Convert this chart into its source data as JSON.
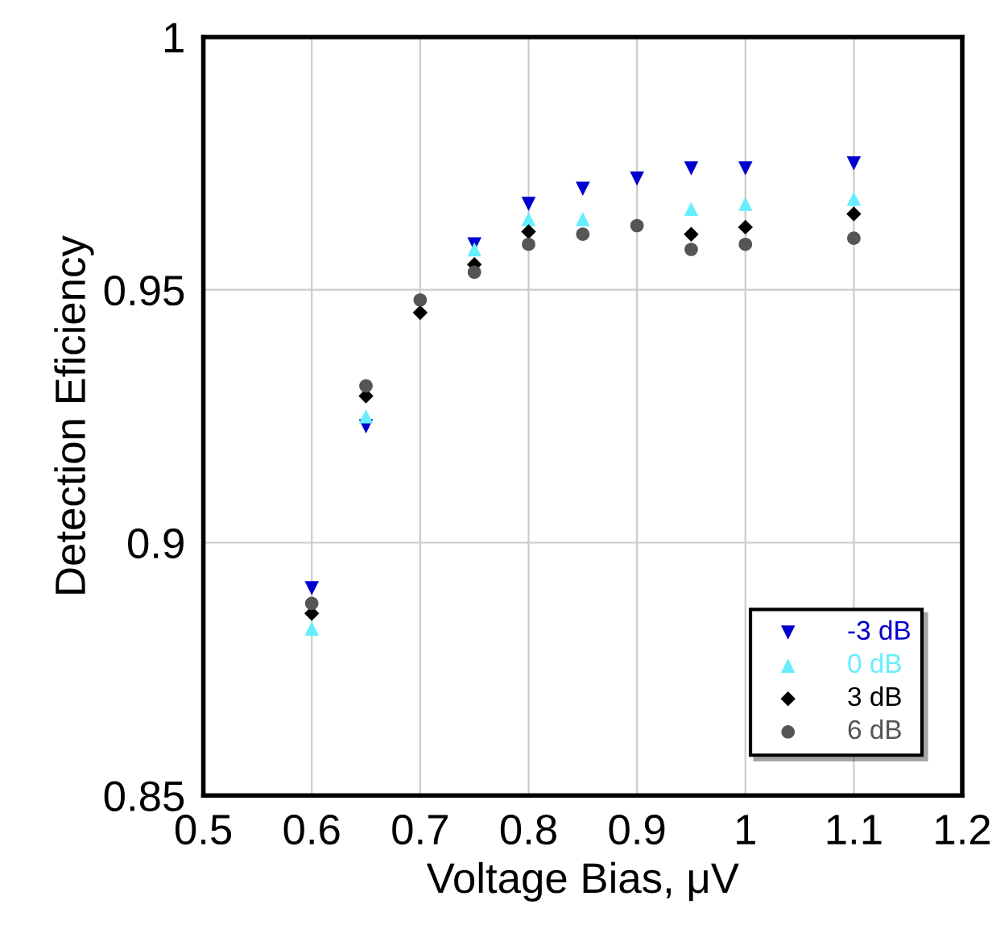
{
  "chart_data": {
    "type": "scatter",
    "xlabel": "Voltage Bias, μV",
    "ylabel": "Detection Eficiency",
    "x": [
      0.6,
      0.65,
      0.7,
      0.75,
      0.8,
      0.85,
      0.9,
      0.95,
      1.0,
      1.1
    ],
    "xlim": [
      0.5,
      1.2
    ],
    "xticks": [
      0.5,
      0.6,
      0.7,
      0.8,
      0.9,
      1,
      1.1,
      1.2
    ],
    "ylim": [
      0.85,
      1
    ],
    "yticks": [
      0.85,
      0.9,
      0.95,
      1
    ],
    "grid": true,
    "legend": "bottom right",
    "series": [
      {
        "name": "-3 dB",
        "color": "#0000cc",
        "marker": "triangle-down",
        "values": [
          0.891,
          0.923,
          null,
          0.959,
          0.967,
          0.97,
          0.972,
          0.974,
          0.974,
          0.975
        ]
      },
      {
        "name": "0 dB",
        "color": "#66eeff",
        "marker": "triangle",
        "values": [
          0.883,
          0.925,
          null,
          0.958,
          0.964,
          0.964,
          null,
          0.966,
          0.967,
          0.968
        ]
      },
      {
        "name": "3 dB",
        "color": "#000000",
        "marker": "diamond",
        "values": [
          0.886,
          0.929,
          0.9455,
          0.955,
          0.9615,
          null,
          null,
          0.961,
          0.9624,
          0.965
        ]
      },
      {
        "name": "6 dB",
        "color": "#555555",
        "marker": "circle",
        "values": [
          0.888,
          0.931,
          0.948,
          0.9535,
          0.959,
          0.961,
          0.9627,
          0.958,
          0.959,
          0.9602
        ]
      }
    ]
  }
}
